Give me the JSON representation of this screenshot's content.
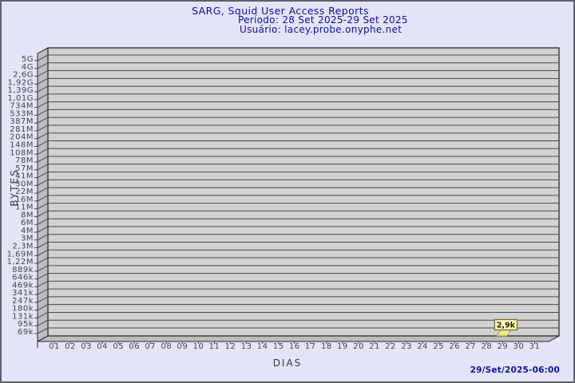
{
  "window": {
    "background_color": "#e4e4f7",
    "border_color": "#60606a"
  },
  "header": {
    "title": "SARG, Squid User Access Reports",
    "period_line": "Período: 28 Set 2025-29 Set 2025",
    "user_line": "Usuário: lacey.probe.onyphe.net",
    "text_color": "#10109e"
  },
  "footer": {
    "timestamp": "29/Set/2025-06:00"
  },
  "chart_data": {
    "type": "bar",
    "title": "SARG, Squid User Access Reports",
    "subtitle_period": "Período: 28 Set 2025-29 Set 2025",
    "subtitle_user": "Usuário: lacey.probe.onyphe.net",
    "xlabel": "DIAS",
    "ylabel": "BYTES",
    "y_scale": "log",
    "grid": true,
    "style": "3d-extruded-left",
    "x_tick_labels": [
      "01",
      "02",
      "03",
      "04",
      "05",
      "06",
      "07",
      "08",
      "09",
      "10",
      "11",
      "12",
      "13",
      "14",
      "15",
      "16",
      "17",
      "18",
      "19",
      "20",
      "21",
      "22",
      "23",
      "24",
      "25",
      "26",
      "27",
      "28",
      "29",
      "30",
      "31"
    ],
    "y_tick_labels": [
      "5G",
      "4G",
      "2,6G",
      "1,92G",
      "1,39G",
      "1,01G",
      "734M",
      "533M",
      "387M",
      "281M",
      "204M",
      "148M",
      "108M",
      "78M",
      "57M",
      "41M",
      "30M",
      "22M",
      "16M",
      "11M",
      "8M",
      "6M",
      "4M",
      "3M",
      "2,3M",
      "1,69M",
      "1,22M",
      "889k",
      "646k",
      "469k",
      "341k",
      "247k",
      "180k",
      "131k",
      "95k",
      "69k"
    ],
    "bars": [
      {
        "day": "29",
        "label": "2,9k",
        "value_bytes": 2900
      }
    ],
    "colors": {
      "plot_face": "#d2d2d2",
      "plot_wall": "#bdbdbd",
      "grid_line": "#4a4a4a",
      "edge": "#2b2b2b",
      "tick_text": "#45454a",
      "bar_fill": "#f0e493",
      "bar_edge": "#8f8f33",
      "tooltip_bg": "#ffffc2",
      "tooltip_border": "#79791c"
    }
  }
}
